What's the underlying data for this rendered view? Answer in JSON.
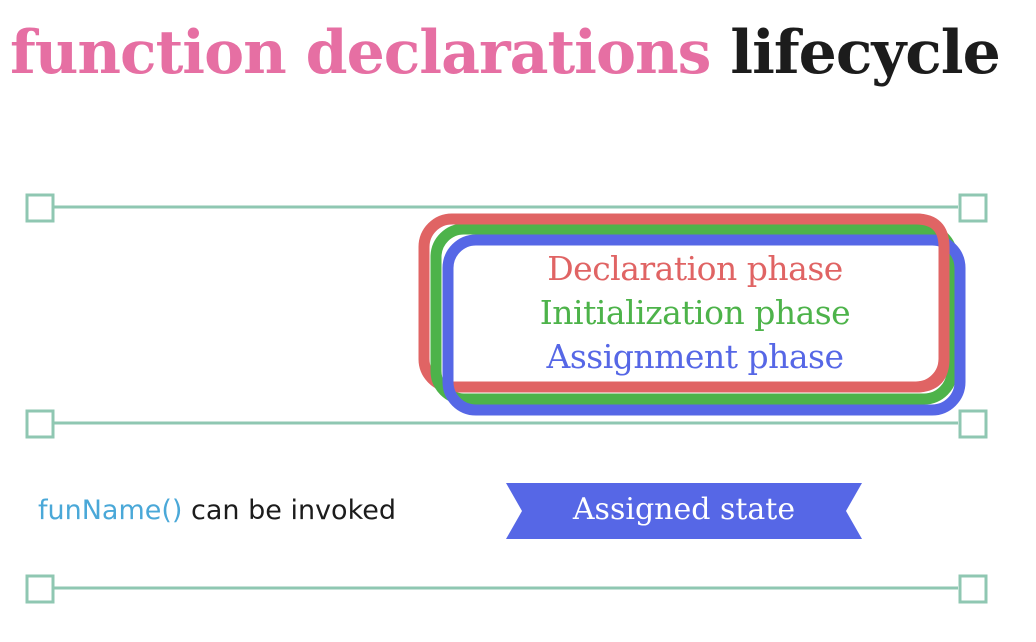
{
  "title": {
    "part1": "function declarations",
    "part2": "lifecycle"
  },
  "phases": {
    "declaration": "Declaration phase",
    "initialization": "Initialization phase",
    "assignment": "Assignment phase"
  },
  "invocation": {
    "function_name": "funName()",
    "text": "can be invoked"
  },
  "state_label": "Assigned state",
  "colors": {
    "title_accent": "#e66fa3",
    "declaration": "#e06464",
    "initialization": "#4db34a",
    "assignment": "#5667e6",
    "timeline": "#8fc7b2",
    "ribbon": "#5667e6",
    "function_name": "#4aa8d8"
  }
}
